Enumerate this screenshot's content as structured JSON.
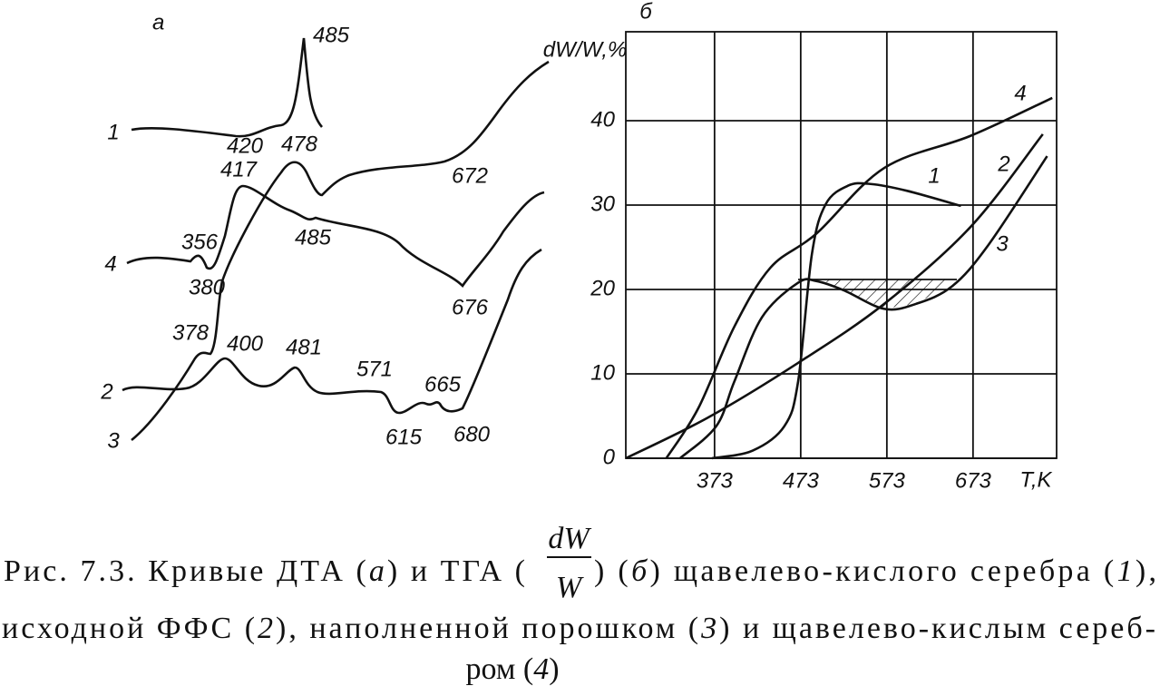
{
  "figure": {
    "panel_a": {
      "label": "а",
      "curve_labels": [
        "1",
        "4",
        "2",
        "3"
      ],
      "annotations": [
        "485",
        "420",
        "478",
        "417",
        "672",
        "356",
        "485",
        "380",
        "676",
        "378",
        "400",
        "481",
        "571",
        "665",
        "615",
        "680"
      ]
    },
    "caption": {
      "line1a": [
        {
          "text": "Рис. 7.3. Кривые ДТА (",
          "italic": false
        },
        {
          "text": "а",
          "italic": true
        },
        {
          "text": ") и ТГА (",
          "italic": false
        }
      ],
      "fraction": {
        "num": "dW",
        "den": "W"
      },
      "line1b": [
        {
          "text": " ) (",
          "italic": false
        },
        {
          "text": "б",
          "italic": true
        },
        {
          "text": ") щавелево-кислого серебра (",
          "italic": false
        },
        {
          "text": "1",
          "italic": true
        },
        {
          "text": "),",
          "italic": false
        }
      ],
      "line2": [
        {
          "text": "исходной ФФС (",
          "italic": false
        },
        {
          "text": "2",
          "italic": true
        },
        {
          "text": "), наполненной порошком (",
          "italic": false
        },
        {
          "text": "3",
          "italic": true
        },
        {
          "text": ") и щавелево-кислым сереб-",
          "italic": false
        }
      ],
      "line3": [
        {
          "text": "ром (",
          "italic": false
        },
        {
          "text": "4",
          "italic": true
        },
        {
          "text": ")",
          "italic": false
        }
      ]
    }
  },
  "chart_data": {
    "type": "line",
    "title": "б",
    "y_label": "dW/W,%",
    "x_label": "T,K",
    "xlim": [
      270,
      770
    ],
    "ylim": [
      0,
      50
    ],
    "xticks": [
      373,
      473,
      573,
      673
    ],
    "yticks": [
      0,
      10,
      20,
      30,
      40
    ],
    "grid": true,
    "series": [
      {
        "name": "1",
        "color": "#111111",
        "x": [
          370,
          417,
          454,
          470,
          486,
          502,
          528,
          554,
          596,
          659
        ],
        "values": [
          0,
          0.9,
          3.8,
          9.1,
          24.2,
          30.1,
          32.3,
          32.5,
          31.7,
          29.9
        ]
      },
      {
        "name": "2",
        "color": "#111111",
        "x": [
          270,
          365,
          470,
          570,
          670,
          754
        ],
        "values": [
          0,
          4.8,
          11.3,
          18.3,
          27.4,
          38.4
        ]
      },
      {
        "name": "3",
        "color": "#111111",
        "x": [
          333,
          375,
          396,
          428,
          470,
          491,
          523,
          570,
          607,
          649,
          691,
          759
        ],
        "values": [
          0,
          3.8,
          9.1,
          16.7,
          20.8,
          21.0,
          19.9,
          17.7,
          18.3,
          20.4,
          25.3,
          35.8
        ]
      },
      {
        "name": "4",
        "color": "#111111",
        "x": [
          317,
          354,
          396,
          438,
          491,
          570,
          670,
          765
        ],
        "values": [
          0,
          5.9,
          15.6,
          22.6,
          26.6,
          34.4,
          38.2,
          42.7
        ]
      }
    ]
  }
}
